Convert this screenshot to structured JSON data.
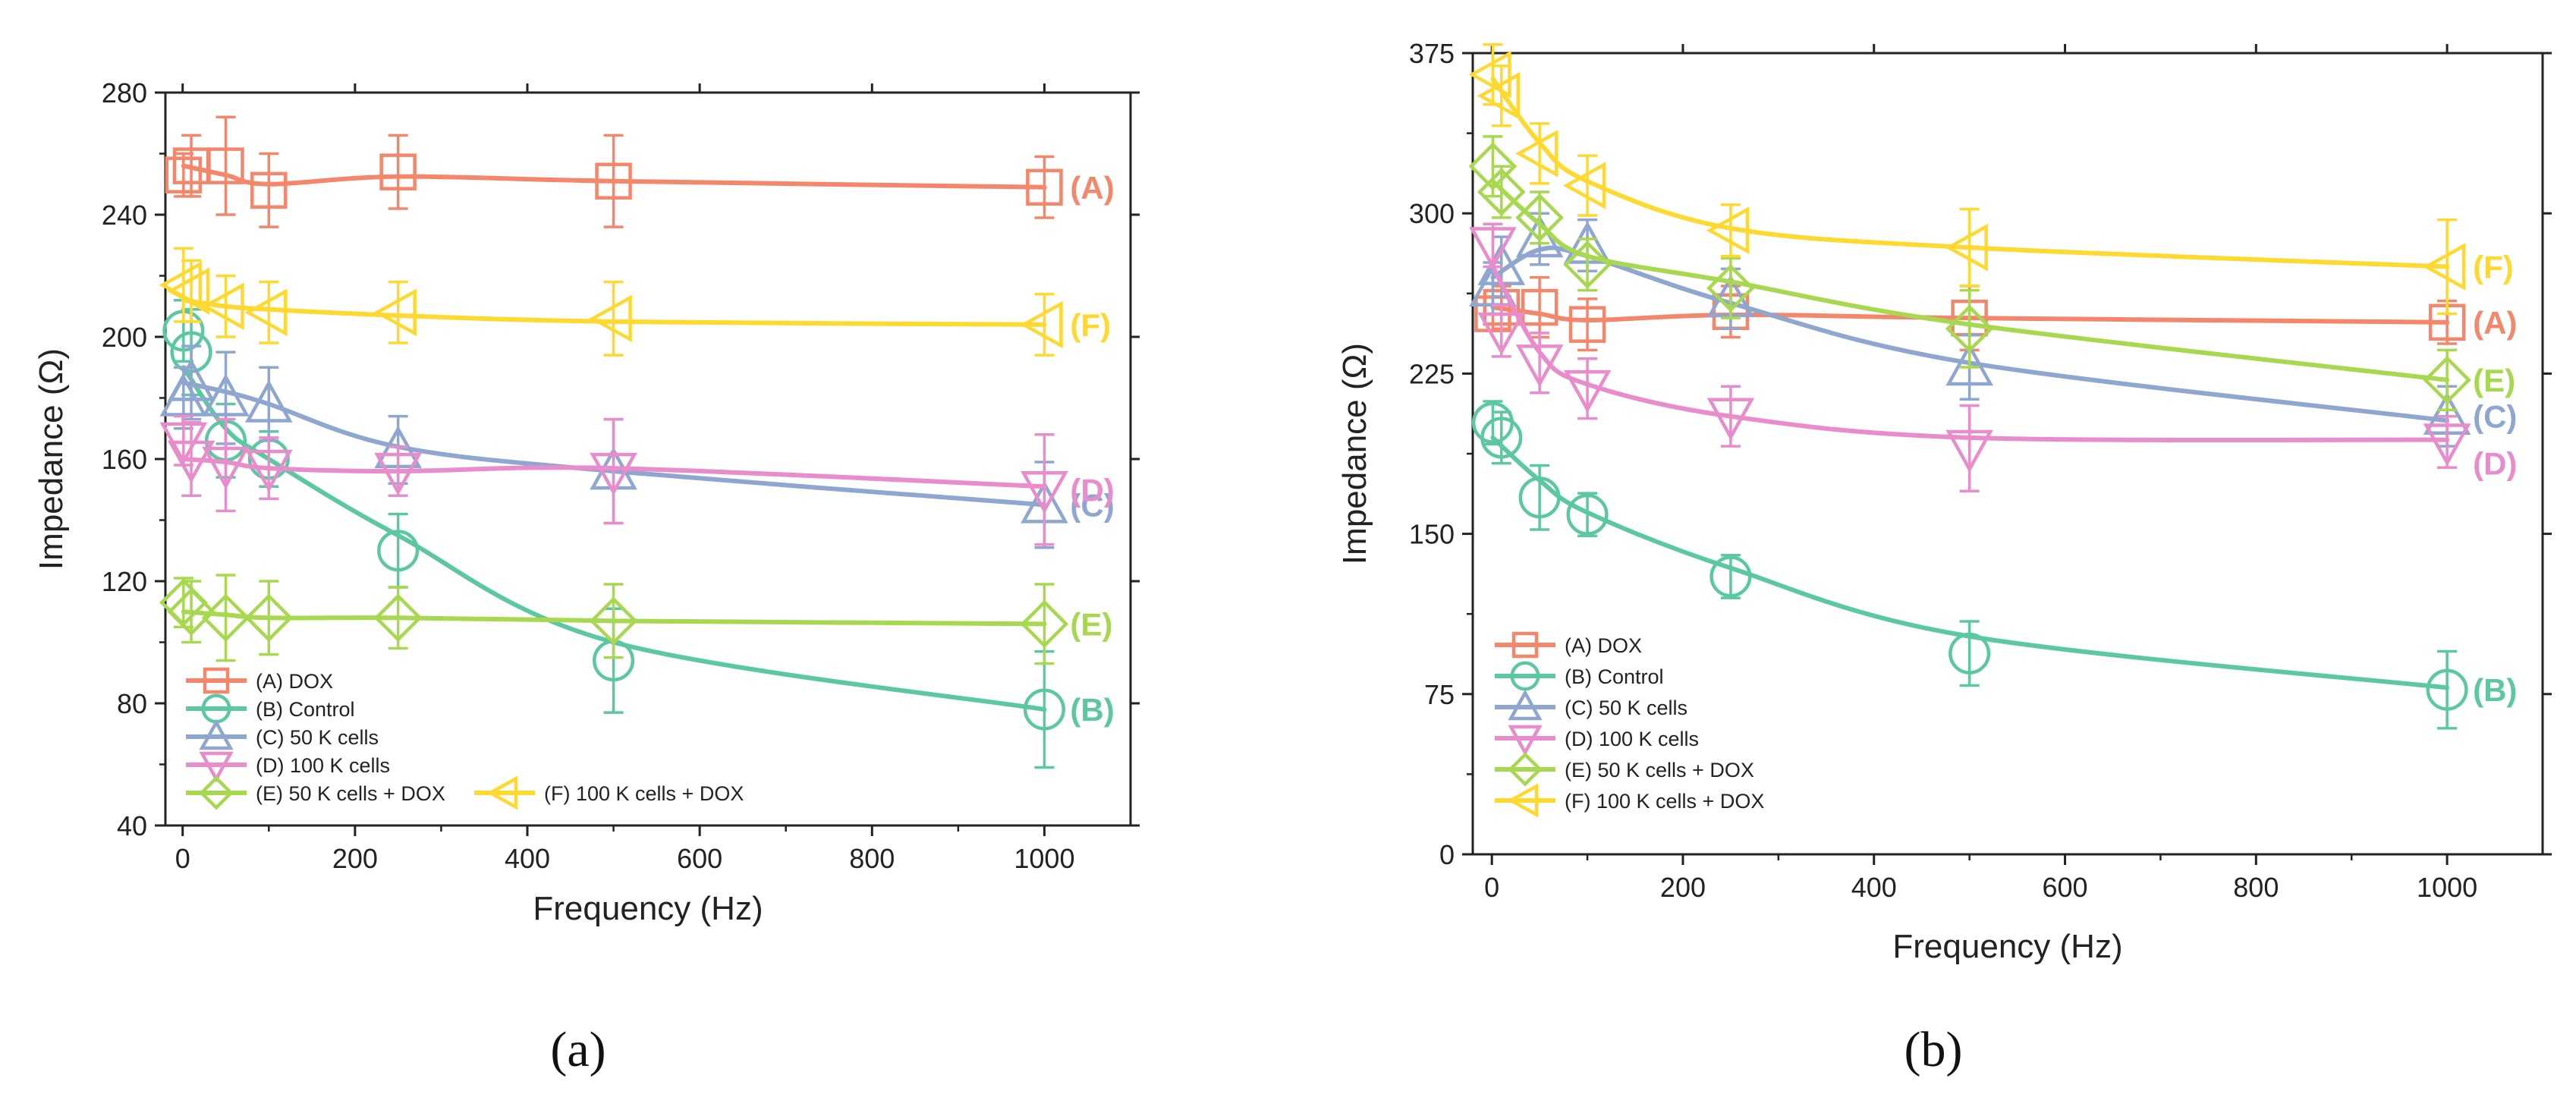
{
  "colors": {
    "A": "#f4876b",
    "B": "#5cc7a3",
    "C": "#8fa6d1",
    "D": "#e98ccb",
    "E": "#a7d84f",
    "F": "#ffd92f"
  },
  "chart_data": [
    {
      "id": "a",
      "type": "line",
      "panel_label": "(a)",
      "xlabel": "Frequency (Hz)",
      "ylabel": "Impedance (Ω)",
      "xlim": [
        -20,
        1100
      ],
      "ylim": [
        40,
        280
      ],
      "xticks": [
        0,
        200,
        400,
        600,
        800,
        1000
      ],
      "yticks": [
        40,
        80,
        120,
        160,
        200,
        240,
        280
      ],
      "legend_position": "bottom-left",
      "x": [
        1,
        10,
        50,
        100,
        250,
        500,
        1000
      ],
      "series": [
        {
          "key": "A",
          "name": "(A) DOX",
          "end_label": "(A)",
          "marker": "square",
          "values": [
            253,
            256,
            256,
            248,
            254,
            251,
            249
          ],
          "err": [
            7,
            10,
            16,
            12,
            12,
            15,
            10
          ],
          "curve": [
            [
              1,
              256
            ],
            [
              50,
              253
            ],
            [
              100,
              250
            ],
            [
              250,
              252.5
            ],
            [
              500,
              251
            ],
            [
              1000,
              249
            ]
          ]
        },
        {
          "key": "B",
          "name": "(B) Control",
          "end_label": "(B)",
          "marker": "circle",
          "values": [
            202,
            195,
            166,
            160,
            130,
            94,
            78
          ],
          "err": [
            10,
            14,
            12,
            9,
            12,
            17,
            19
          ],
          "curve": [
            [
              1,
              190
            ],
            [
              50,
              170
            ],
            [
              100,
              160
            ],
            [
              250,
              135
            ],
            [
              500,
              100
            ],
            [
              1000,
              78
            ]
          ]
        },
        {
          "key": "C",
          "name": "(C) 50 K cells",
          "end_label": "(C)",
          "marker": "triangle-up",
          "values": [
            180,
            185,
            180,
            178,
            163,
            156,
            145
          ],
          "err": [
            10,
            12,
            15,
            12,
            11,
            17,
            14
          ],
          "curve": [
            [
              1,
              185
            ],
            [
              50,
              182
            ],
            [
              100,
              178
            ],
            [
              250,
              164
            ],
            [
              500,
              156
            ],
            [
              1000,
              145
            ]
          ]
        },
        {
          "key": "D",
          "name": "(D) 100 K cells",
          "end_label": "(D)",
          "marker": "triangle-down",
          "values": [
            166,
            160,
            158,
            157,
            156,
            156,
            150
          ],
          "err": [
            8,
            12,
            15,
            10,
            8,
            17,
            18
          ],
          "curve": [
            [
              1,
              160
            ],
            [
              50,
              159
            ],
            [
              100,
              157
            ],
            [
              250,
              156
            ],
            [
              500,
              157
            ],
            [
              1000,
              151
            ]
          ]
        },
        {
          "key": "E",
          "name": "(E) 50 K cells + DOX",
          "end_label": "(E)",
          "marker": "diamond",
          "values": [
            113,
            110,
            108,
            108,
            108,
            107,
            106
          ],
          "err": [
            8,
            10,
            14,
            12,
            10,
            12,
            13
          ],
          "curve": [
            [
              1,
              110
            ],
            [
              50,
              109
            ],
            [
              100,
              108
            ],
            [
              250,
              108
            ],
            [
              500,
              107
            ],
            [
              1000,
              106
            ]
          ]
        },
        {
          "key": "F",
          "name": "(F) 100 K cells + DOX",
          "end_label": "(F)",
          "marker": "triangle-left",
          "values": [
            217,
            215,
            210,
            208,
            208,
            206,
            204
          ],
          "err": [
            12,
            10,
            10,
            10,
            10,
            12,
            10
          ],
          "curve": [
            [
              1,
              212
            ],
            [
              50,
              210
            ],
            [
              100,
              209
            ],
            [
              250,
              207
            ],
            [
              500,
              205
            ],
            [
              1000,
              204
            ]
          ]
        }
      ]
    },
    {
      "id": "b",
      "type": "line",
      "panel_label": "(b)",
      "xlabel": "Frequency (Hz)",
      "ylabel": "Impedance (Ω)",
      "xlim": [
        -20,
        1100
      ],
      "ylim": [
        0,
        375
      ],
      "xticks": [
        0,
        200,
        400,
        600,
        800,
        1000
      ],
      "yticks": [
        0,
        75,
        150,
        225,
        300,
        375
      ],
      "legend_position": "bottom-left",
      "x": [
        1,
        10,
        50,
        100,
        250,
        500,
        1000
      ],
      "series": [
        {
          "key": "A",
          "name": "(A) DOX",
          "end_label": "(A)",
          "marker": "square",
          "values": [
            253,
            256,
            256,
            248,
            254,
            251,
            249
          ],
          "err": [
            8,
            10,
            14,
            12,
            12,
            15,
            10
          ],
          "curve": [
            [
              1,
              256
            ],
            [
              50,
              253
            ],
            [
              100,
              250
            ],
            [
              250,
              252.5
            ],
            [
              500,
              251
            ],
            [
              1000,
              249
            ]
          ]
        },
        {
          "key": "B",
          "name": "(B) Control",
          "end_label": "(B)",
          "marker": "circle",
          "values": [
            202,
            195,
            167,
            159,
            130,
            94,
            77
          ],
          "err": [
            10,
            12,
            15,
            10,
            10,
            15,
            18
          ],
          "curve": [
            [
              1,
              195
            ],
            [
              50,
              175
            ],
            [
              100,
              160
            ],
            [
              250,
              134
            ],
            [
              500,
              102
            ],
            [
              1000,
              78
            ]
          ]
        },
        {
          "key": "C",
          "name": "(C) 50 K cells",
          "end_label": "(C)",
          "marker": "triangle-up",
          "values": [
            265,
            275,
            288,
            285,
            260,
            228,
            205
          ],
          "err": [
            12,
            14,
            12,
            12,
            14,
            15,
            14
          ],
          "curve": [
            [
              1,
              270
            ],
            [
              50,
              283
            ],
            [
              100,
              280
            ],
            [
              250,
              258
            ],
            [
              500,
              230
            ],
            [
              1000,
              203
            ]
          ]
        },
        {
          "key": "D",
          "name": "(D) 100 K cells",
          "end_label": "(D)",
          "marker": "triangle-down",
          "values": [
            285,
            245,
            230,
            218,
            205,
            190,
            193
          ],
          "err": [
            10,
            12,
            14,
            14,
            14,
            20,
            12
          ],
          "curve": [
            [
              1,
              275
            ],
            [
              50,
              235
            ],
            [
              100,
              220
            ],
            [
              250,
              205
            ],
            [
              500,
              195
            ],
            [
              1000,
              194
            ]
          ]
        },
        {
          "key": "E",
          "name": "(E) 50 K cells + DOX",
          "end_label": "(E)",
          "marker": "diamond",
          "values": [
            322,
            310,
            298,
            276,
            265,
            246,
            222
          ],
          "err": [
            14,
            12,
            12,
            12,
            14,
            18,
            14
          ],
          "curve": [
            [
              1,
              315
            ],
            [
              50,
              295
            ],
            [
              100,
              280
            ],
            [
              250,
              268
            ],
            [
              500,
              248
            ],
            [
              1000,
              222
            ]
          ]
        },
        {
          "key": "F",
          "name": "(F) 100 K cells + DOX",
          "end_label": "(F)",
          "marker": "triangle-left",
          "values": [
            365,
            355,
            328,
            313,
            292,
            284,
            275
          ],
          "err": [
            14,
            14,
            14,
            14,
            12,
            18,
            22
          ],
          "curve": [
            [
              1,
              363
            ],
            [
              50,
              333
            ],
            [
              100,
              315
            ],
            [
              250,
              293
            ],
            [
              500,
              284
            ],
            [
              1000,
              275
            ]
          ]
        }
      ]
    }
  ]
}
